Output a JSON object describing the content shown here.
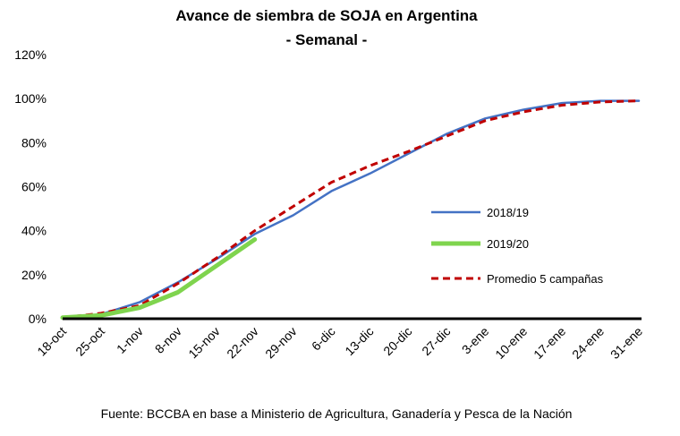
{
  "chart_data": {
    "type": "line",
    "title": "Avance de siembra de SOJA en Argentina",
    "subtitle": "- Semanal -",
    "xlabel": "",
    "ylabel": "",
    "categories": [
      "18-oct",
      "25-oct",
      "1-nov",
      "8-nov",
      "15-nov",
      "22-nov",
      "29-nov",
      "6-dic",
      "13-dic",
      "20-dic",
      "27-dic",
      "3-ene",
      "10-ene",
      "17-ene",
      "24-ene",
      "31-ene"
    ],
    "y_ticks": [
      "0%",
      "20%",
      "40%",
      "60%",
      "80%",
      "100%",
      "120%"
    ],
    "ylim": [
      0,
      120
    ],
    "grid": false,
    "legend_position": "right",
    "series": [
      {
        "name": "2018/19",
        "color": "#4472c4",
        "style": "solid",
        "values": [
          0.5,
          2,
          7.5,
          16.5,
          27,
          38.5,
          47,
          58,
          66,
          75,
          84,
          91,
          95,
          98,
          99,
          99
        ]
      },
      {
        "name": "2019/20",
        "color": "#7fd44e",
        "style": "solid",
        "values": [
          0.5,
          1.5,
          5,
          12,
          24,
          36,
          null,
          null,
          null,
          null,
          null,
          null,
          null,
          null,
          null,
          null
        ]
      },
      {
        "name": "Promedio 5 campañas",
        "color": "#c00000",
        "style": "dashed",
        "values": [
          0.5,
          2.5,
          6,
          16,
          27.5,
          40,
          51,
          62,
          69.5,
          76,
          83,
          90,
          94,
          97,
          98.5,
          99
        ]
      }
    ]
  },
  "footer": {
    "source": "Fuente: BCCBA en base a Ministerio de Agricultura, Ganadería y Pesca de la Nación"
  }
}
